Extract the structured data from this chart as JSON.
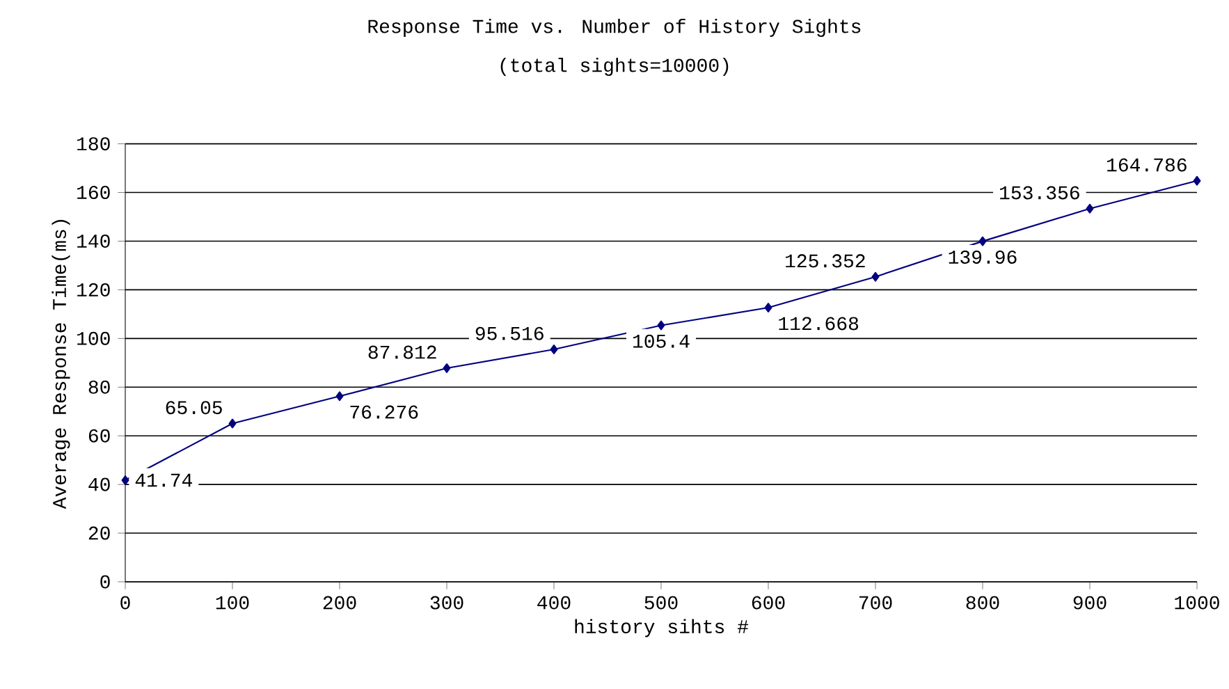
{
  "chart_data": {
    "type": "line",
    "title": "Response Time vs. Number of History Sights",
    "subtitle": "(total sights=10000)",
    "xlabel": "history sihts #",
    "ylabel": "Average Response Time(ms)",
    "x": [
      0,
      100,
      200,
      300,
      400,
      500,
      600,
      700,
      800,
      900,
      1000
    ],
    "series": [
      {
        "color": "#000080",
        "values": [
          41.74,
          65.05,
          76.276,
          87.812,
          95.516,
          105.4,
          112.668,
          125.352,
          139.96,
          153.356,
          164.786
        ]
      }
    ],
    "xlim": [
      0,
      1000
    ],
    "xticks": [
      0,
      100,
      200,
      300,
      400,
      500,
      600,
      700,
      800,
      900,
      1000
    ],
    "ylim": [
      0,
      180
    ],
    "yticks": [
      0,
      20,
      40,
      60,
      80,
      100,
      120,
      140,
      160,
      180
    ],
    "grid": "y",
    "marker": "diamond",
    "line_style": "solid",
    "data_labels": true
  }
}
